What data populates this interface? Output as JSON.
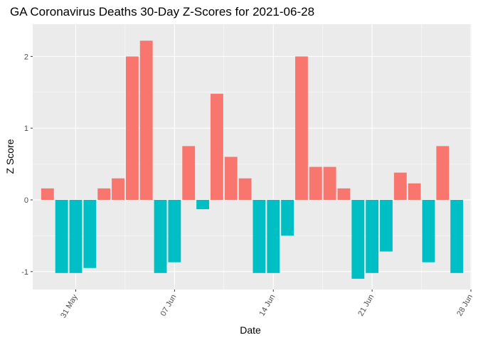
{
  "chart_data": {
    "type": "bar",
    "title": "GA Coronavirus Deaths 30-Day Z-Scores for 2021-06-28",
    "xlabel": "Date",
    "ylabel": "Z Score",
    "ylim": [
      -1.25,
      2.45
    ],
    "y_ticks": [
      -1,
      0,
      1,
      2
    ],
    "y_tick_labels": [
      "-1",
      "0",
      "1",
      "2"
    ],
    "x_ticks": [
      {
        "day": 3,
        "label": "31 May"
      },
      {
        "day": 10,
        "label": "07 Jun"
      },
      {
        "day": 17,
        "label": "14 Jun"
      },
      {
        "day": 24,
        "label": "21 Jun"
      },
      {
        "day": 31,
        "label": "28 Jun"
      }
    ],
    "start_date": "2021-05-29",
    "colors": {
      "positive": "#F8766D",
      "negative": "#00BFC4"
    },
    "values": [
      0.16,
      -1.02,
      -1.02,
      -0.95,
      0.16,
      0.3,
      2.0,
      2.22,
      -1.02,
      -0.87,
      0.75,
      -0.13,
      1.48,
      0.6,
      0.3,
      -1.02,
      -1.02,
      -0.5,
      2.0,
      0.46,
      0.46,
      0.16,
      -1.1,
      -1.02,
      -0.72,
      0.38,
      0.23,
      -0.87,
      0.75,
      -1.02
    ]
  }
}
